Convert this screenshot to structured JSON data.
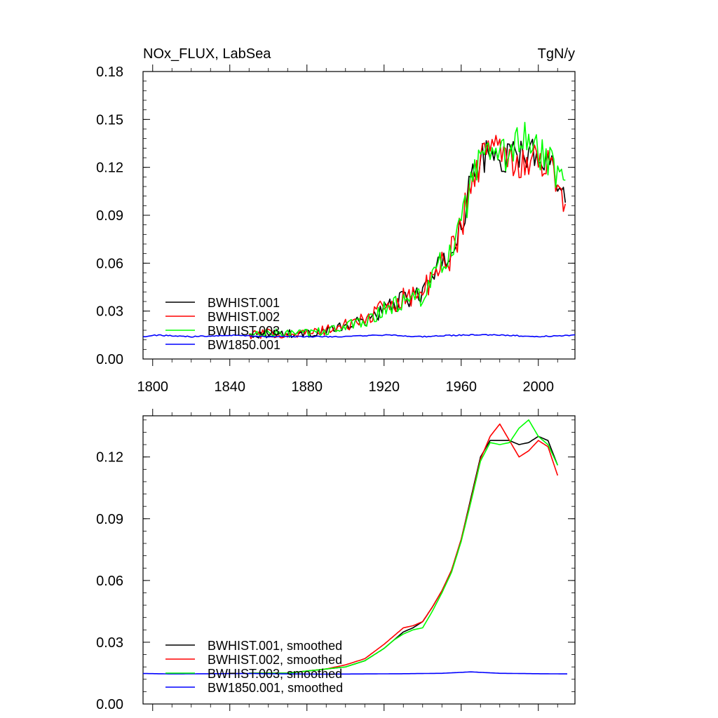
{
  "chart_data": [
    {
      "type": "line",
      "panel": "top",
      "title_left": "NOx_FLUX, LabSea",
      "title_right": "TgN/y",
      "xlabel": "",
      "ylabel": "",
      "xlim": [
        1795,
        2019
      ],
      "ylim": [
        0.0,
        0.18
      ],
      "x_ticks": [
        1800,
        1840,
        1880,
        1920,
        1960,
        2000
      ],
      "x_tick_labels": [
        "1800",
        "1840",
        "1880",
        "1920",
        "1960",
        "2000"
      ],
      "y_ticks": [
        0.0,
        0.03,
        0.06,
        0.09,
        0.12,
        0.15,
        0.18
      ],
      "y_tick_labels": [
        "0.00",
        "0.03",
        "0.06",
        "0.09",
        "0.12",
        "0.15",
        "0.18"
      ],
      "legend_position": "bottom-left",
      "series": [
        {
          "name": "BWHIST.001",
          "color": "#000000",
          "x": [
            1850,
            1860,
            1870,
            1880,
            1890,
            1900,
            1910,
            1920,
            1930,
            1935,
            1940,
            1945,
            1950,
            1955,
            1960,
            1965,
            1970,
            1975,
            1980,
            1985,
            1990,
            1995,
            2000,
            2005,
            2010,
            2014
          ],
          "values": [
            0.015,
            0.016,
            0.016,
            0.016,
            0.018,
            0.02,
            0.024,
            0.031,
            0.037,
            0.039,
            0.043,
            0.05,
            0.058,
            0.068,
            0.085,
            0.11,
            0.125,
            0.128,
            0.125,
            0.127,
            0.128,
            0.129,
            0.13,
            0.125,
            0.115,
            0.103
          ],
          "noise": 0.01
        },
        {
          "name": "BWHIST.002",
          "color": "#ff0000",
          "x": [
            1850,
            1860,
            1870,
            1880,
            1890,
            1900,
            1910,
            1920,
            1930,
            1935,
            1940,
            1945,
            1950,
            1955,
            1960,
            1965,
            1970,
            1975,
            1980,
            1985,
            1990,
            1995,
            2000,
            2005,
            2010,
            2014
          ],
          "values": [
            0.015,
            0.016,
            0.016,
            0.016,
            0.018,
            0.021,
            0.025,
            0.032,
            0.039,
            0.04,
            0.042,
            0.049,
            0.058,
            0.068,
            0.084,
            0.108,
            0.125,
            0.132,
            0.135,
            0.128,
            0.122,
            0.124,
            0.126,
            0.122,
            0.112,
            0.098
          ],
          "noise": 0.011
        },
        {
          "name": "BWHIST.003",
          "color": "#00ff00",
          "x": [
            1850,
            1860,
            1870,
            1880,
            1890,
            1900,
            1910,
            1920,
            1930,
            1935,
            1940,
            1945,
            1950,
            1955,
            1960,
            1965,
            1970,
            1975,
            1980,
            1985,
            1990,
            1995,
            2000,
            2005,
            2010,
            2014
          ],
          "values": [
            0.015,
            0.016,
            0.016,
            0.016,
            0.018,
            0.02,
            0.024,
            0.031,
            0.036,
            0.037,
            0.041,
            0.05,
            0.058,
            0.068,
            0.083,
            0.108,
            0.124,
            0.126,
            0.125,
            0.13,
            0.138,
            0.138,
            0.128,
            0.124,
            0.116,
            0.108
          ],
          "noise": 0.011
        },
        {
          "name": "BW1850.001",
          "color": "#0000ff",
          "x": [
            1795,
            1800,
            1820,
            1840,
            1860,
            1880,
            1900,
            1920,
            1940,
            1960,
            1980,
            2000,
            2019
          ],
          "values": [
            0.014,
            0.015,
            0.014,
            0.015,
            0.014,
            0.014,
            0.014,
            0.015,
            0.014,
            0.015,
            0.015,
            0.014,
            0.015
          ],
          "noise": 0.0015
        }
      ]
    },
    {
      "type": "line",
      "panel": "bottom",
      "xlabel": "",
      "ylabel": "",
      "xlim": [
        1795,
        2019
      ],
      "ylim": [
        0.0,
        0.14
      ],
      "x_ticks": [
        1800,
        1840,
        1880,
        1920,
        1960,
        2000
      ],
      "y_ticks": [
        0.0,
        0.03,
        0.06,
        0.09,
        0.12
      ],
      "y_tick_labels": [
        "0.00",
        "0.03",
        "0.06",
        "0.09",
        "0.12"
      ],
      "legend_position": "bottom-left",
      "series": [
        {
          "name": "BWHIST.001, smoothed",
          "color": "#000000",
          "x": [
            1850,
            1860,
            1870,
            1880,
            1890,
            1900,
            1910,
            1920,
            1925,
            1930,
            1935,
            1940,
            1945,
            1950,
            1955,
            1960,
            1965,
            1970,
            1975,
            1980,
            1985,
            1990,
            1995,
            2000,
            2005,
            2010
          ],
          "values": [
            0.015,
            0.015,
            0.015,
            0.016,
            0.017,
            0.018,
            0.021,
            0.027,
            0.031,
            0.035,
            0.037,
            0.04,
            0.047,
            0.055,
            0.065,
            0.08,
            0.1,
            0.12,
            0.128,
            0.128,
            0.128,
            0.126,
            0.127,
            0.13,
            0.128,
            0.116
          ]
        },
        {
          "name": "BWHIST.002, smoothed",
          "color": "#ff0000",
          "x": [
            1850,
            1860,
            1870,
            1880,
            1890,
            1900,
            1910,
            1920,
            1925,
            1930,
            1935,
            1940,
            1945,
            1950,
            1955,
            1960,
            1965,
            1970,
            1975,
            1980,
            1985,
            1990,
            1995,
            2000,
            2005,
            2010
          ],
          "values": [
            0.015,
            0.015,
            0.015,
            0.016,
            0.017,
            0.019,
            0.022,
            0.029,
            0.033,
            0.037,
            0.038,
            0.04,
            0.047,
            0.055,
            0.065,
            0.08,
            0.099,
            0.119,
            0.13,
            0.136,
            0.128,
            0.12,
            0.123,
            0.128,
            0.125,
            0.111
          ]
        },
        {
          "name": "BWHIST.003, smoothed",
          "color": "#00ff00",
          "x": [
            1850,
            1860,
            1870,
            1880,
            1890,
            1900,
            1910,
            1920,
            1925,
            1930,
            1935,
            1940,
            1945,
            1950,
            1955,
            1960,
            1965,
            1970,
            1975,
            1980,
            1985,
            1990,
            1995,
            2000,
            2005,
            2010
          ],
          "values": [
            0.015,
            0.015,
            0.015,
            0.016,
            0.017,
            0.018,
            0.021,
            0.027,
            0.031,
            0.034,
            0.036,
            0.037,
            0.045,
            0.054,
            0.064,
            0.079,
            0.098,
            0.118,
            0.127,
            0.126,
            0.127,
            0.134,
            0.138,
            0.13,
            0.126,
            0.116
          ]
        },
        {
          "name": "BW1850.001, smoothed",
          "color": "#0000ff",
          "x": [
            1795,
            1810,
            1830,
            1850,
            1870,
            1890,
            1910,
            1930,
            1950,
            1965,
            1980,
            2000,
            2015
          ],
          "values": [
            0.0148,
            0.0146,
            0.0147,
            0.0148,
            0.0146,
            0.0145,
            0.0146,
            0.0147,
            0.0149,
            0.0156,
            0.0149,
            0.0147,
            0.0146
          ]
        }
      ]
    }
  ]
}
